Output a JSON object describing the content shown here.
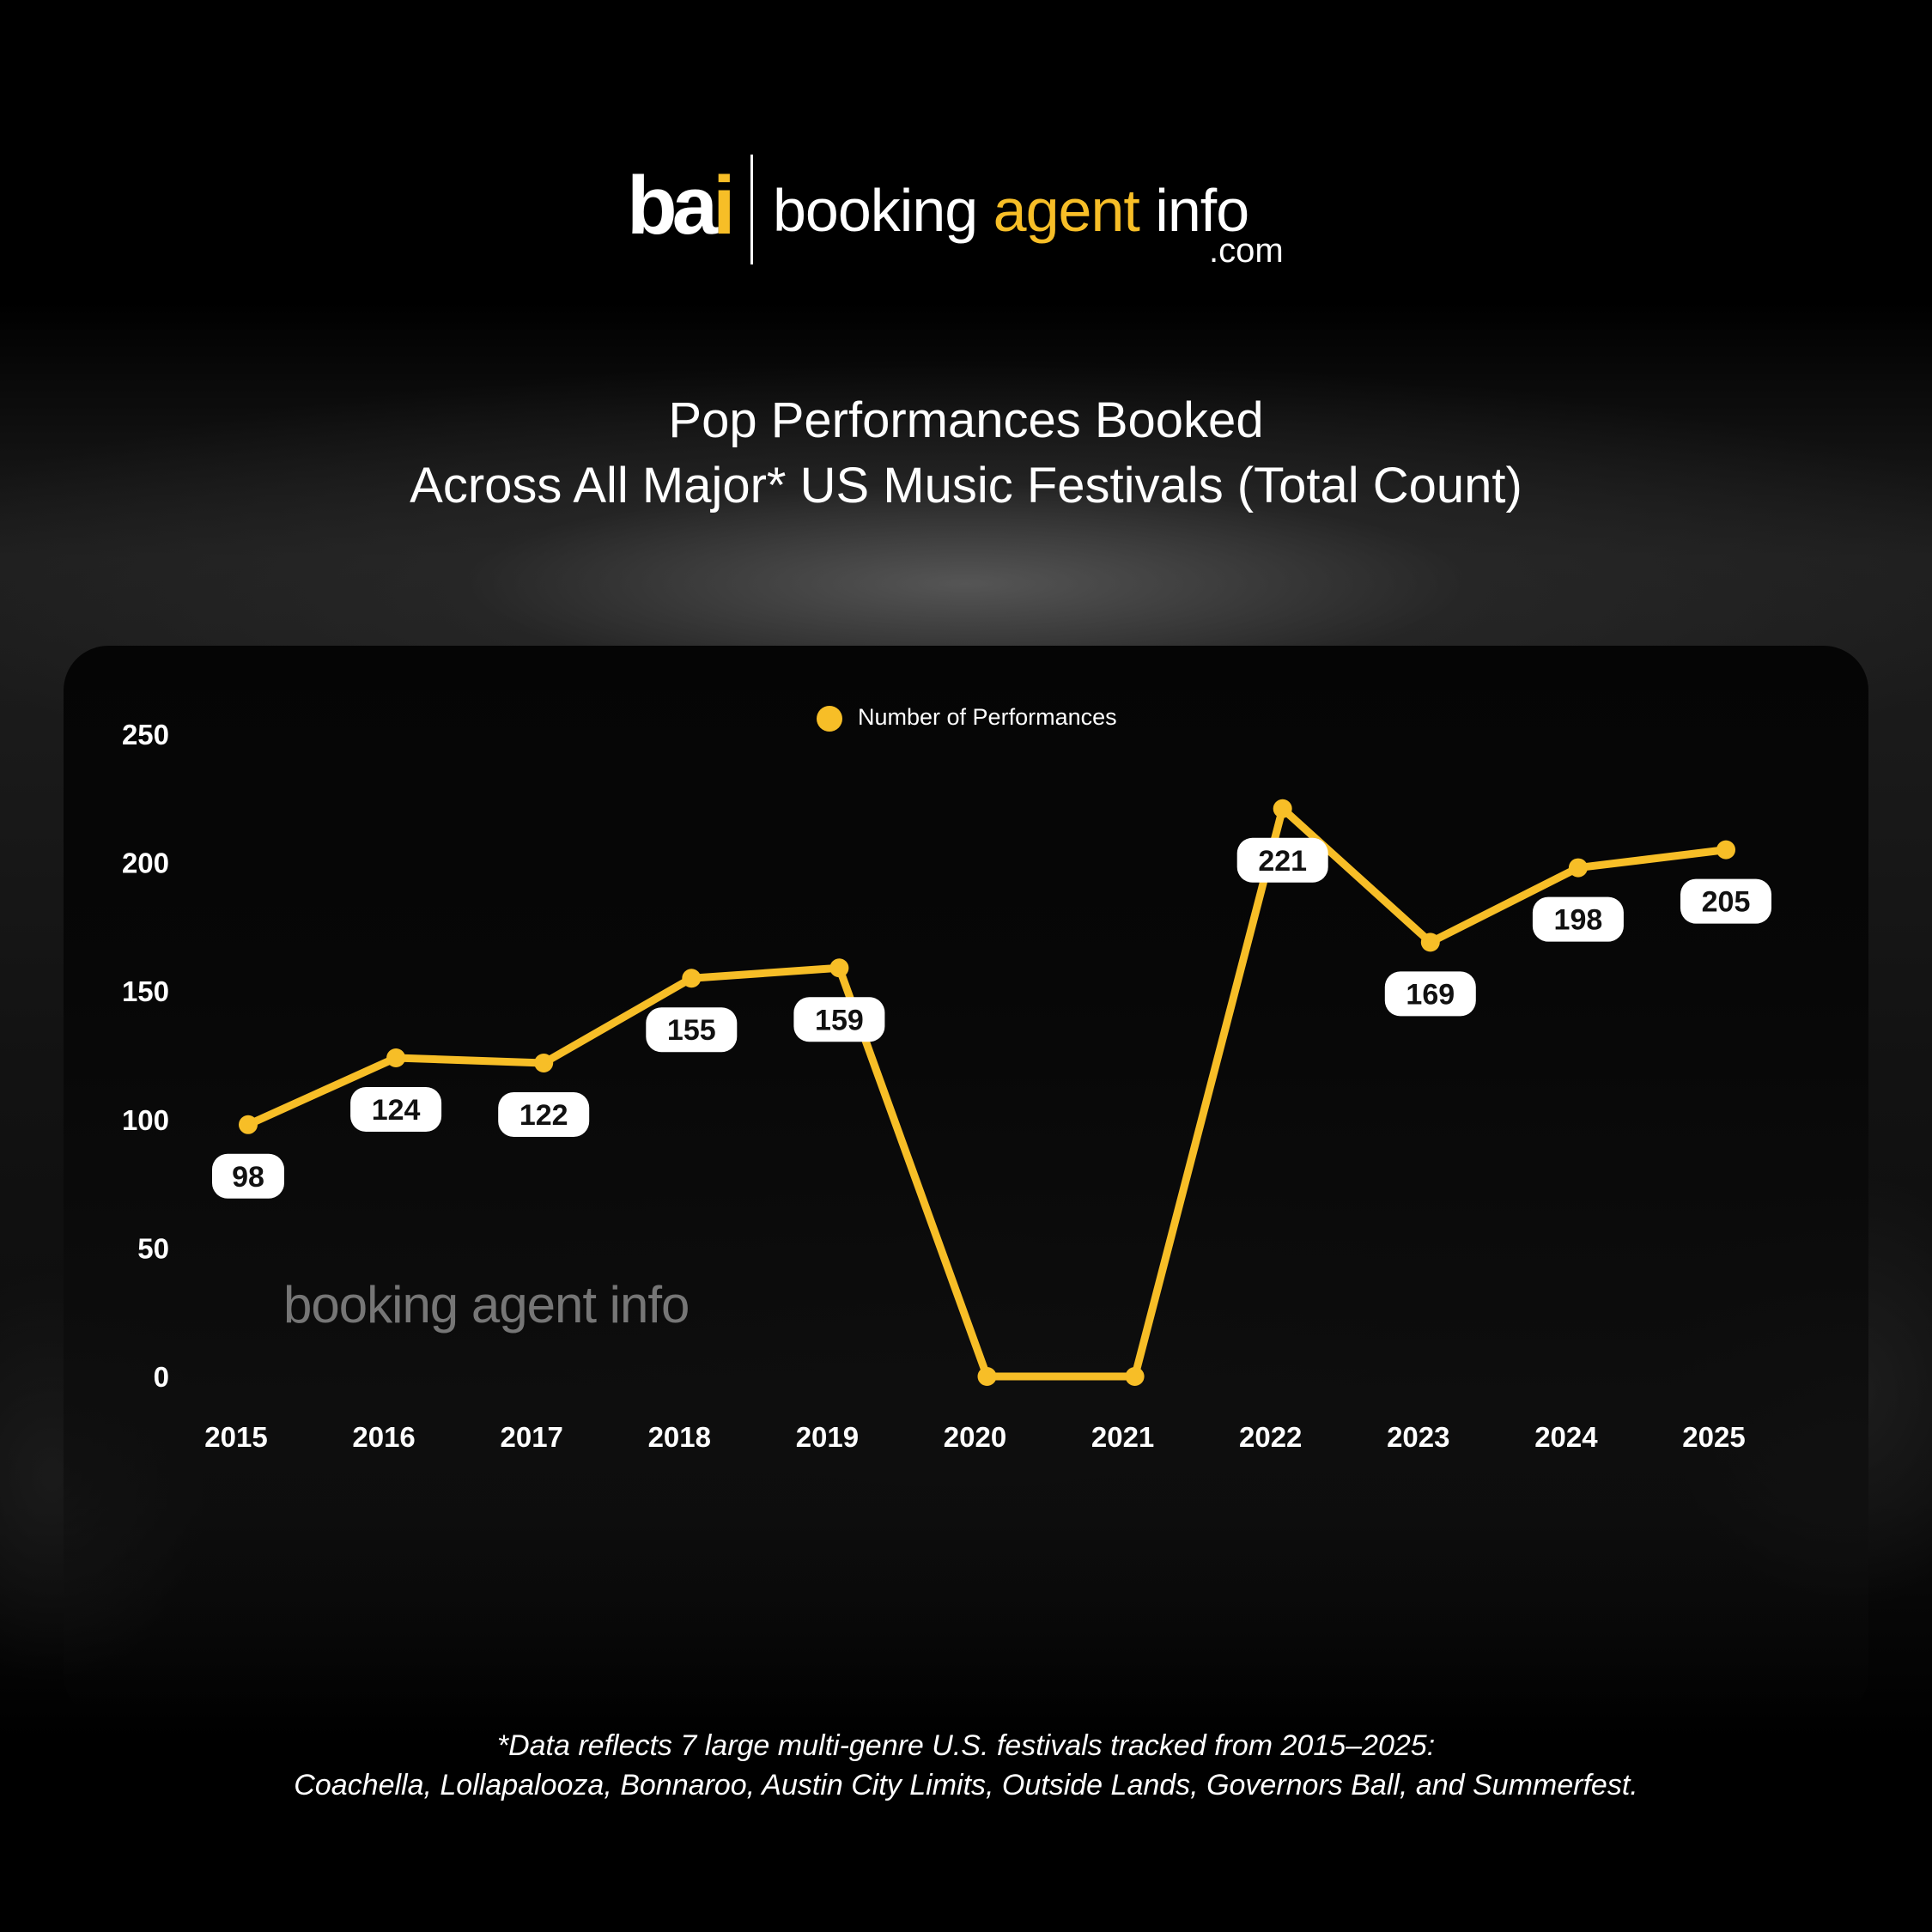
{
  "brand": {
    "mark_main": "ba",
    "mark_accent": "i",
    "word_1": "booking",
    "word_2": "agent",
    "word_3": "info",
    "dotcom": ".com",
    "accent_color": "#f7be27"
  },
  "title": {
    "line1": "Pop Performances Booked",
    "line2": "Across All Major* US Music Festivals (Total Count)"
  },
  "watermark": "booking agent info",
  "footnote": {
    "line1": "*Data reflects 7 large multi-genre U.S. festivals tracked from 2015–2025:",
    "line2": "Coachella, Lollapalooza, Bonnaroo, Austin City Limits, Outside Lands, Governors Ball, and Summerfest."
  },
  "chart_data": {
    "type": "line",
    "legend_position": "top-center",
    "grid": false,
    "x": [
      "2015",
      "2016",
      "2017",
      "2018",
      "2019",
      "2020",
      "2021",
      "2022",
      "2023",
      "2024",
      "2025"
    ],
    "ylim": [
      0,
      250
    ],
    "yticks": [
      0,
      50,
      100,
      150,
      200,
      250
    ],
    "series": [
      {
        "name": "Number of Performances",
        "color": "#f7be27",
        "values": [
          98,
          124,
          122,
          155,
          159,
          0,
          0,
          221,
          169,
          198,
          205
        ],
        "data_labels": [
          "98",
          "124",
          "122",
          "155",
          "159",
          "",
          "",
          "221",
          "169",
          "198",
          "205"
        ]
      }
    ]
  }
}
